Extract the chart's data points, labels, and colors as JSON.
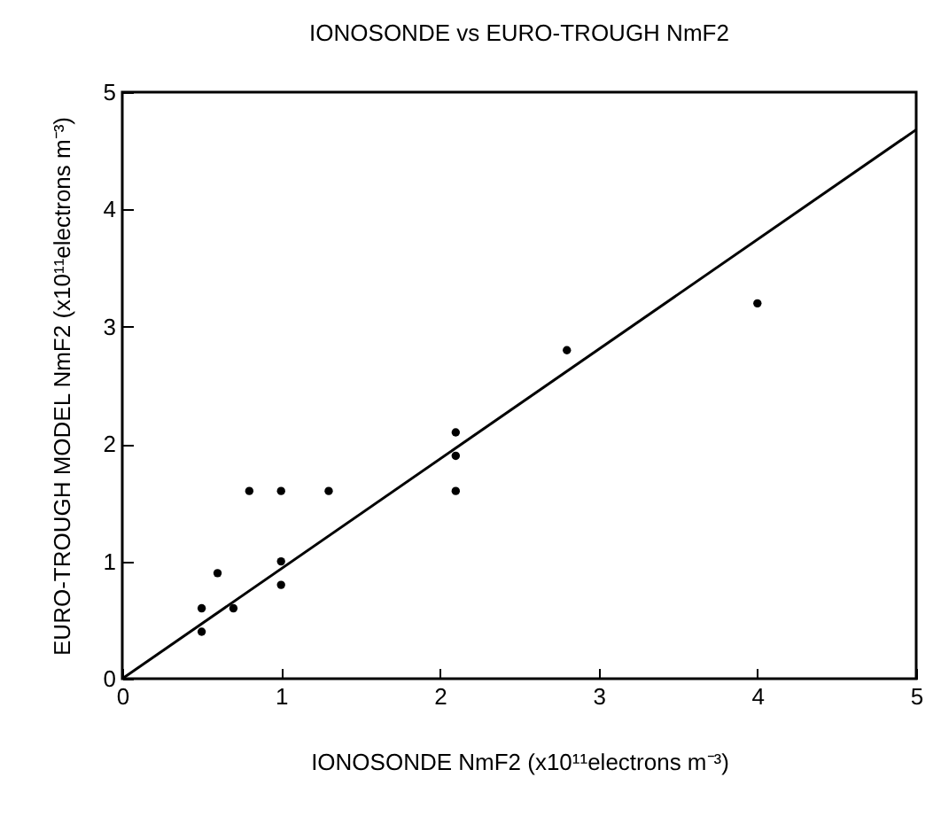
{
  "chart_data": {
    "type": "scatter",
    "title": "IONOSONDE vs EURO-TROUGH NmF2",
    "xlabel": "IONOSONDE NmF2 (x10¹¹electrons m⁻³)",
    "ylabel": "EURO-TROUGH MODEL NmF2 (x10¹¹electrons m⁻³)",
    "xlim": [
      0,
      5
    ],
    "ylim": [
      0,
      5
    ],
    "xticks": [
      0,
      1,
      2,
      3,
      4,
      5
    ],
    "yticks": [
      0,
      1,
      2,
      3,
      4,
      5
    ],
    "grid": false,
    "series": [
      {
        "marker": "circle",
        "color": "#000000",
        "x": [
          0.5,
          0.5,
          0.6,
          0.7,
          0.8,
          1,
          1.3,
          1,
          1,
          2.1,
          2.1,
          2.1,
          2.8,
          4
        ],
        "values": [
          0.6,
          0.4,
          0.9,
          0.6,
          1.6,
          1.6,
          1.6,
          1.0,
          0.8,
          2.1,
          1.9,
          1.6,
          2.8,
          3.2
        ]
      },
      {
        "type": "line",
        "color": "#000000",
        "line_style": "solid",
        "x": [
          0,
          5
        ],
        "values": [
          0,
          4.68
        ]
      }
    ]
  }
}
